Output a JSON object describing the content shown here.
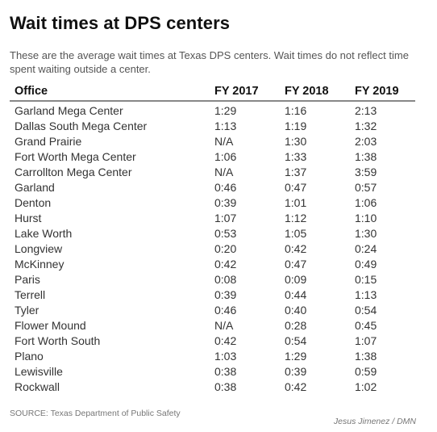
{
  "title": "Wait times at DPS centers",
  "subtitle": "These are the average wait times at Texas DPS centers. Wait times do not reflect time spent waiting outside a center.",
  "source": "SOURCE: Texas Department of Public Safety",
  "credit": "Jesus Jimenez / DMN",
  "chart_data": {
    "type": "table",
    "columns": [
      "Office",
      "FY 2017",
      "FY 2018",
      "FY 2019"
    ],
    "rows": [
      [
        "Garland Mega Center",
        "1:29",
        "1:16",
        "2:13"
      ],
      [
        "Dallas South Mega Center",
        "1:13",
        "1:19",
        "1:32"
      ],
      [
        "Grand Prairie",
        "N/A",
        "1:30",
        "2:03"
      ],
      [
        "Fort Worth Mega Center",
        "1:06",
        "1:33",
        "1:38"
      ],
      [
        "Carrollton Mega Center",
        "N/A",
        "1:37",
        "3:59"
      ],
      [
        "Garland",
        "0:46",
        "0:47",
        "0:57"
      ],
      [
        "Denton",
        "0:39",
        "1:01",
        "1:06"
      ],
      [
        "Hurst",
        "1:07",
        "1:12",
        "1:10"
      ],
      [
        "Lake Worth",
        "0:53",
        "1:05",
        "1:30"
      ],
      [
        "Longview",
        "0:20",
        "0:42",
        "0:24"
      ],
      [
        "McKinney",
        "0:42",
        "0:47",
        "0:49"
      ],
      [
        "Paris",
        "0:08",
        "0:09",
        "0:15"
      ],
      [
        "Terrell",
        "0:39",
        "0:44",
        "1:13"
      ],
      [
        "Tyler",
        "0:46",
        "0:40",
        "0:54"
      ],
      [
        "Flower Mound",
        "N/A",
        "0:28",
        "0:45"
      ],
      [
        "Fort Worth South",
        "0:42",
        "0:54",
        "1:07"
      ],
      [
        "Plano",
        "1:03",
        "1:29",
        "1:38"
      ],
      [
        "Lewisville",
        "0:38",
        "0:39",
        "0:59"
      ],
      [
        "Rockwall",
        "0:38",
        "0:42",
        "1:02"
      ]
    ]
  }
}
